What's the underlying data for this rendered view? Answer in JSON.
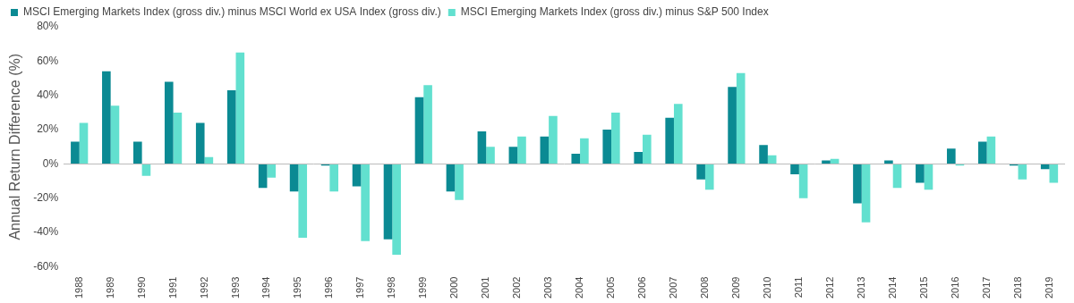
{
  "chart_data": {
    "type": "bar",
    "y_label": "Annual Return Difference (%)",
    "categories": [
      "1988",
      "1989",
      "1990",
      "1991",
      "1992",
      "1993",
      "1994",
      "1995",
      "1996",
      "1997",
      "1998",
      "1999",
      "2000",
      "2001",
      "2002",
      "2003",
      "2004",
      "2005",
      "2006",
      "2007",
      "2008",
      "2009",
      "2010",
      "2011",
      "2012",
      "2013",
      "2014",
      "2015",
      "2016",
      "2017",
      "2018",
      "2019"
    ],
    "series": [
      {
        "name": "MSCI Emerging Markets Index (gross div.) minus MSCI World ex USA Index (gross div.)",
        "color": "#0b8a93",
        "values": [
          13,
          54,
          13,
          48,
          24,
          43,
          -14,
          -16,
          -1,
          -13,
          -44,
          39,
          -16,
          19,
          10,
          16,
          6,
          20,
          7,
          27,
          -9,
          45,
          11,
          -6,
          2,
          -23,
          2,
          -11,
          9,
          13,
          -1,
          -3
        ]
      },
      {
        "name": "MSCI Emerging Markets Index (gross div.) minus S&P 500 Index",
        "color": "#62e0cf",
        "values": [
          24,
          34,
          -7,
          30,
          4,
          65,
          -8,
          -43,
          -16,
          -45,
          -53,
          46,
          -21,
          10,
          16,
          28,
          15,
          30,
          17,
          35,
          -15,
          53,
          5,
          -20,
          3,
          -34,
          -14,
          -15,
          -1,
          16,
          -9,
          -11
        ]
      }
    ],
    "ylim": [
      -60,
      80
    ],
    "yticks": [
      {
        "value": -60,
        "label": "-60%"
      },
      {
        "value": -40,
        "label": "-40%"
      },
      {
        "value": -20,
        "label": "-20%"
      },
      {
        "value": 0,
        "label": "0%"
      },
      {
        "value": 20,
        "label": "20%"
      },
      {
        "value": 40,
        "label": "40%"
      },
      {
        "value": 60,
        "label": "60%"
      },
      {
        "value": 80,
        "label": "80%"
      }
    ],
    "grid": false,
    "legend": "top-left"
  }
}
